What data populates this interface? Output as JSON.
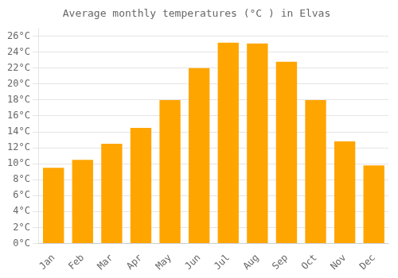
{
  "chart_data": {
    "type": "bar",
    "title": "Average monthly temperatures (°C ) in Elvas",
    "categories": [
      "Jan",
      "Feb",
      "Mar",
      "Apr",
      "May",
      "Jun",
      "Jul",
      "Aug",
      "Sep",
      "Oct",
      "Nov",
      "Dec"
    ],
    "values": [
      9.5,
      10.5,
      12.5,
      14.5,
      18.0,
      22.0,
      25.2,
      25.1,
      22.8,
      18.0,
      12.8,
      9.8
    ],
    "color": "#FFA500",
    "ylim": [
      0,
      27
    ],
    "yticks": [
      {
        "value": 0,
        "label": "0°C"
      },
      {
        "value": 2,
        "label": "2°C"
      },
      {
        "value": 4,
        "label": "4°C"
      },
      {
        "value": 6,
        "label": "6°C"
      },
      {
        "value": 8,
        "label": "8°C"
      },
      {
        "value": 10,
        "label": "10°C"
      },
      {
        "value": 12,
        "label": "12°C"
      },
      {
        "value": 14,
        "label": "14°C"
      },
      {
        "value": 16,
        "label": "16°C"
      },
      {
        "value": 18,
        "label": "18°C"
      },
      {
        "value": 20,
        "label": "20°C"
      },
      {
        "value": 22,
        "label": "22°C"
      },
      {
        "value": 24,
        "label": "24°C"
      },
      {
        "value": 26,
        "label": "26°C"
      }
    ],
    "grid": true
  }
}
